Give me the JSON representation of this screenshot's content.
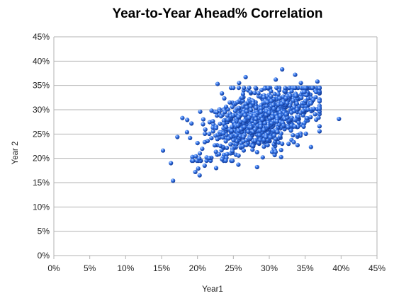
{
  "chart_data": {
    "type": "scatter",
    "title": "Year-to-Year Ahead% Correlation",
    "xlabel": "Year1",
    "ylabel": "Year 2",
    "xlim": [
      0,
      0.45
    ],
    "ylim": [
      0,
      0.45
    ],
    "x_ticks": [
      "0%",
      "5%",
      "10%",
      "15%",
      "20%",
      "25%",
      "30%",
      "35%",
      "40%",
      "45%"
    ],
    "y_ticks": [
      "0%",
      "5%",
      "10%",
      "15%",
      "20%",
      "25%",
      "30%",
      "35%",
      "40%",
      "45%"
    ],
    "grid": "horizontal",
    "legend": "none",
    "marker_color": "#1f5fd1",
    "n_points": 1000,
    "x_mean": 0.29,
    "x_sd": 0.04,
    "y_mean": 0.28,
    "y_sd": 0.038,
    "correlation": 0.55,
    "outliers": [
      [
        0.152,
        0.216
      ],
      [
        0.163,
        0.19
      ],
      [
        0.166,
        0.154
      ],
      [
        0.172,
        0.244
      ],
      [
        0.179,
        0.283
      ],
      [
        0.197,
        0.172
      ],
      [
        0.203,
        0.165
      ],
      [
        0.201,
        0.179
      ],
      [
        0.228,
        0.353
      ],
      [
        0.257,
        0.187
      ],
      [
        0.258,
        0.355
      ],
      [
        0.267,
        0.367
      ],
      [
        0.309,
        0.362
      ],
      [
        0.318,
        0.383
      ],
      [
        0.336,
        0.372
      ],
      [
        0.344,
        0.355
      ],
      [
        0.367,
        0.358
      ],
      [
        0.362,
        0.302
      ],
      [
        0.397,
        0.281
      ],
      [
        0.283,
        0.182
      ],
      [
        0.318,
        0.23
      ],
      [
        0.226,
        0.18
      ],
      [
        0.21,
        0.185
      ]
    ]
  }
}
